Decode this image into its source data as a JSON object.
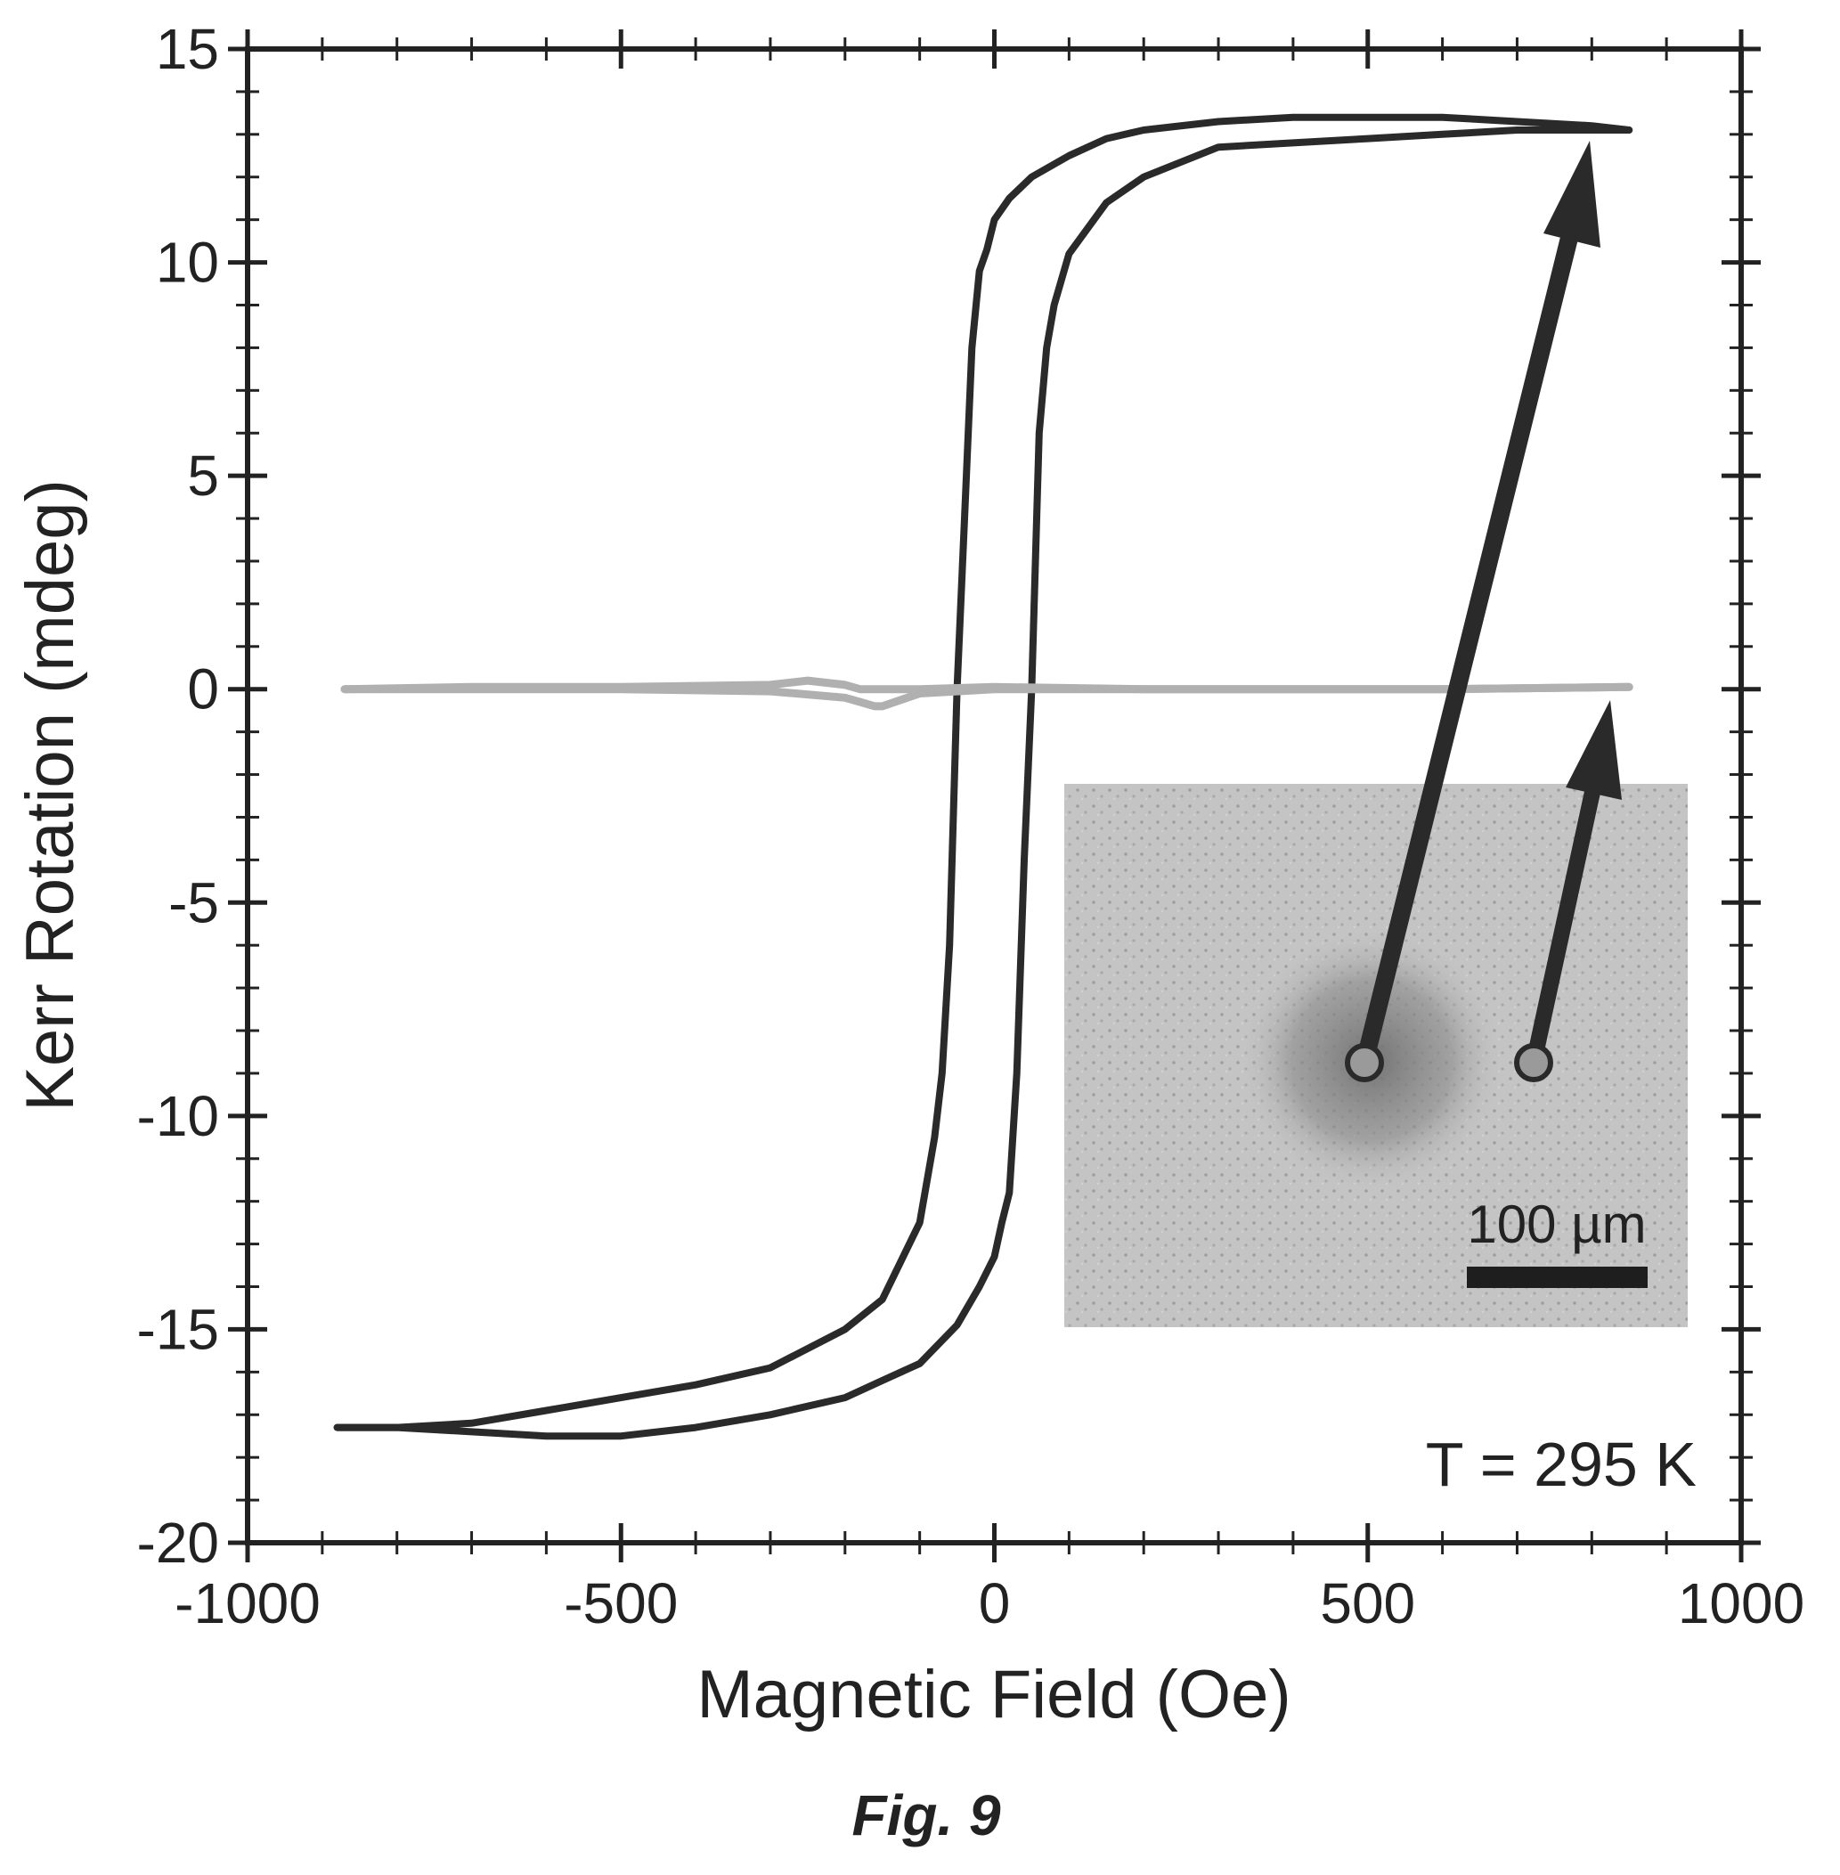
{
  "chart_data": {
    "type": "line",
    "title": "",
    "xlabel": "Magnetic Field (Oe)",
    "ylabel": "Kerr Rotation (mdeg)",
    "xlim": [
      -1000,
      1000
    ],
    "ylim": [
      -20,
      15
    ],
    "xticks": [
      -1000,
      -500,
      0,
      500,
      1000
    ],
    "xtick_labels": [
      "-1000",
      "-500",
      "0",
      "500",
      "1000"
    ],
    "yticks": [
      -20,
      -15,
      -10,
      -5,
      0,
      5,
      10,
      15
    ],
    "ytick_labels": [
      "-20",
      "-15",
      "-10",
      "-5",
      "0",
      "5",
      "10",
      "15"
    ],
    "grid": false,
    "annotation": "T = 295 K",
    "inset": {
      "type": "micrograph",
      "scalebar_label": "100 µm"
    },
    "colors": {
      "dark_series": "#2a2a2a",
      "light_series": "#b0b0b0",
      "axes": "#222222"
    },
    "series": [
      {
        "color": "#2a2a2a",
        "x": [
          850,
          800,
          700,
          600,
          500,
          400,
          300,
          200,
          150,
          100,
          50,
          20,
          0,
          -10,
          -20,
          -30,
          -40,
          -50,
          -55,
          -60,
          -70,
          -80,
          -100,
          -150,
          -200,
          -300,
          -400,
          -500,
          -600,
          -700,
          -800,
          -880
        ],
        "y": [
          13.1,
          13.2,
          13.3,
          13.4,
          13.4,
          13.4,
          13.3,
          13.1,
          12.9,
          12.5,
          12.0,
          11.5,
          11.0,
          10.3,
          9.8,
          8.0,
          4.0,
          0.0,
          -3.0,
          -6.0,
          -9.0,
          -10.5,
          -12.5,
          -14.3,
          -15.0,
          -15.9,
          -16.3,
          -16.6,
          -16.9,
          -17.2,
          -17.3,
          -17.3
        ]
      },
      {
        "color": "#2a2a2a",
        "x": [
          -880,
          -800,
          -700,
          -600,
          -500,
          -400,
          -300,
          -200,
          -150,
          -100,
          -50,
          -20,
          0,
          10,
          20,
          30,
          40,
          50,
          55,
          60,
          70,
          80,
          100,
          150,
          200,
          300,
          400,
          500,
          600,
          700,
          800,
          850
        ],
        "y": [
          -17.3,
          -17.3,
          -17.4,
          -17.5,
          -17.5,
          -17.3,
          -17.0,
          -16.6,
          -16.2,
          -15.8,
          -14.9,
          -14.0,
          -13.3,
          -12.5,
          -11.8,
          -9.0,
          -4.0,
          0.0,
          3.0,
          6.0,
          8.0,
          9.0,
          10.2,
          11.4,
          12.0,
          12.7,
          12.8,
          12.9,
          13.0,
          13.1,
          13.1,
          13.1
        ]
      },
      {
        "color": "#b0b0b0",
        "x": [
          -870,
          -700,
          -500,
          -300,
          -250,
          -200,
          -180,
          -160,
          -150,
          -100,
          0,
          200,
          400,
          600,
          850
        ],
        "y": [
          0.0,
          0.05,
          0.05,
          0.1,
          0.2,
          0.1,
          0.0,
          0.0,
          0.0,
          0.0,
          0.05,
          0.0,
          0.0,
          0.0,
          0.05
        ]
      },
      {
        "color": "#b0b0b0",
        "x": [
          850,
          600,
          400,
          200,
          0,
          -100,
          -150,
          -160,
          -180,
          -200,
          -300,
          -500,
          -700,
          -870
        ],
        "y": [
          0.05,
          0.0,
          0.0,
          0.0,
          0.0,
          -0.1,
          -0.4,
          -0.4,
          -0.3,
          -0.2,
          -0.05,
          0.0,
          0.0,
          0.0
        ]
      }
    ]
  },
  "caption": "Fig. 9"
}
